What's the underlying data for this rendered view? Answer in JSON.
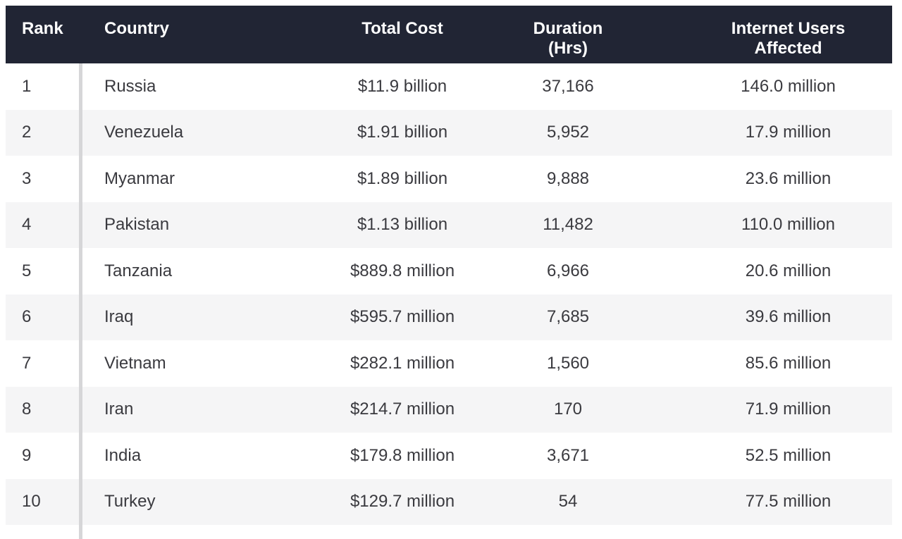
{
  "chart_data": {
    "type": "table",
    "title": "",
    "columns": [
      "Rank",
      "Country",
      "Total Cost",
      "Duration (Hrs)",
      "Internet Users Affected"
    ],
    "rows": [
      {
        "rank": "1",
        "country": "Russia",
        "total_cost": "$11.9 billion",
        "duration_hrs": "37,166",
        "internet_users_affected": "146.0 million"
      },
      {
        "rank": "2",
        "country": "Venezuela",
        "total_cost": "$1.91 billion",
        "duration_hrs": "5,952",
        "internet_users_affected": "17.9 million"
      },
      {
        "rank": "3",
        "country": "Myanmar",
        "total_cost": "$1.89 billion",
        "duration_hrs": "9,888",
        "internet_users_affected": "23.6 million"
      },
      {
        "rank": "4",
        "country": "Pakistan",
        "total_cost": "$1.13 billion",
        "duration_hrs": "11,482",
        "internet_users_affected": "110.0 million"
      },
      {
        "rank": "5",
        "country": "Tanzania",
        "total_cost": "$889.8 million",
        "duration_hrs": "6,966",
        "internet_users_affected": "20.6 million"
      },
      {
        "rank": "6",
        "country": "Iraq",
        "total_cost": "$595.7 million",
        "duration_hrs": "7,685",
        "internet_users_affected": "39.6 million"
      },
      {
        "rank": "7",
        "country": "Vietnam",
        "total_cost": "$282.1 million",
        "duration_hrs": "1,560",
        "internet_users_affected": "85.6 million"
      },
      {
        "rank": "8",
        "country": "Iran",
        "total_cost": "$214.7 million",
        "duration_hrs": "170",
        "internet_users_affected": "71.9 million"
      },
      {
        "rank": "9",
        "country": "India",
        "total_cost": "$179.8 million",
        "duration_hrs": "3,671",
        "internet_users_affected": "52.5 million"
      },
      {
        "rank": "10",
        "country": "Turkey",
        "total_cost": "$129.7 million",
        "duration_hrs": "54",
        "internet_users_affected": "77.5 million"
      }
    ]
  },
  "colors": {
    "header_bg": "#212534",
    "header_text": "#ffffff",
    "row_bg": "#ffffff",
    "row_alt_bg": "#f5f5f6",
    "body_text": "#3a3a3f",
    "rank_divider": "#d6d6d8"
  }
}
